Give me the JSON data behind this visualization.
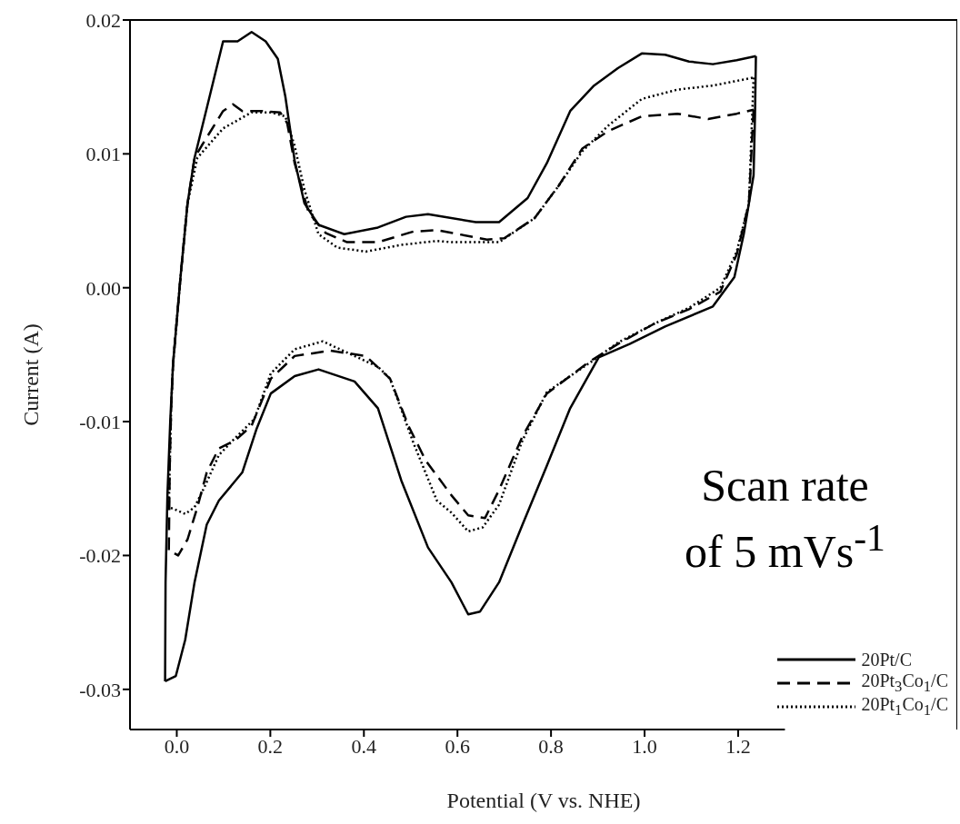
{
  "chart_data": {
    "type": "line",
    "xlabel": "Potential (V vs. NHE)",
    "ylabel": "Current (A)",
    "xlim": [
      -0.1,
      1.3
    ],
    "ylim": [
      -0.033,
      0.02
    ],
    "xticks": [
      {
        "value": 0,
        "label": "0.0"
      },
      {
        "value": 0.2,
        "label": "0.2"
      },
      {
        "value": 0.4,
        "label": "0.4"
      },
      {
        "value": 0.6,
        "label": "0.6"
      },
      {
        "value": 0.8,
        "label": "0.8"
      },
      {
        "value": 1,
        "label": "1.0"
      },
      {
        "value": 1.2,
        "label": "1.2"
      }
    ],
    "yticks": [
      {
        "value": -0.03,
        "label": "-0.03"
      },
      {
        "value": -0.02,
        "label": "-0.02"
      },
      {
        "value": -0.01,
        "label": "-0.01"
      },
      {
        "value": 0,
        "label": "0.00"
      },
      {
        "value": 0.01,
        "label": "0.01"
      },
      {
        "value": 0.02,
        "label": "0.02"
      }
    ],
    "legend": "bottom right",
    "marker": "none",
    "annotations": [
      "Scan rate of 5 mVs$^{-1}$"
    ],
    "series": [
      {
        "name": "20Pt/C",
        "color": "#000000",
        "line_style": "solid",
        "x": [
          -0.025,
          -0.024,
          -0.02,
          -0.014,
          -0.008,
          0.008,
          0.023,
          0.038,
          0.064,
          0.099,
          0.13,
          0.16,
          0.19,
          0.216,
          0.232,
          0.252,
          0.273,
          0.303,
          0.358,
          0.43,
          0.49,
          0.537,
          0.639,
          0.689,
          0.75,
          0.791,
          0.841,
          0.892,
          0.943,
          0.994,
          1.044,
          1.095,
          1.146,
          1.197,
          1.238
        ],
        "values": [
          -0.0294,
          -0.022,
          -0.0155,
          -0.01,
          -0.0057,
          0.0008,
          0.0063,
          0.0097,
          0.0134,
          0.0184,
          0.0184,
          0.0191,
          0.0184,
          0.0171,
          0.0143,
          0.0095,
          0.0063,
          0.0047,
          0.004,
          0.0045,
          0.0053,
          0.0055,
          0.0049,
          0.0049,
          0.0067,
          0.0093,
          0.0132,
          0.0151,
          0.0164,
          0.0175,
          0.0174,
          0.0169,
          0.0167,
          0.017,
          0.0173
        ]
      },
      {
        "name": "20Pt$_{3}$Co$_{1}$/C",
        "color": "#000000",
        "line_style": "dashed",
        "x": [
          -0.017,
          -0.015,
          -0.012,
          -0.008,
          0.008,
          0.023,
          0.038,
          0.053,
          0.099,
          0.12,
          0.14,
          0.181,
          0.221,
          0.236,
          0.252,
          0.282,
          0.318,
          0.364,
          0.43,
          0.506,
          0.556,
          0.587,
          0.663,
          0.7,
          0.765,
          0.816,
          0.867,
          0.922,
          0.994,
          1.07,
          1.136,
          1.197,
          1.233
        ],
        "values": [
          -0.0196,
          -0.0133,
          -0.009,
          -0.0057,
          0.0008,
          0.0063,
          0.0097,
          0.0106,
          0.0132,
          0.0137,
          0.0132,
          0.0132,
          0.0131,
          0.0123,
          0.0093,
          0.0056,
          0.0041,
          0.0034,
          0.0034,
          0.0042,
          0.0043,
          0.0041,
          0.0036,
          0.0037,
          0.0052,
          0.0076,
          0.0104,
          0.0117,
          0.0128,
          0.013,
          0.0126,
          0.013,
          0.0133
        ]
      },
      {
        "name": "20Pt$_{1}$Co$_{1}$/C",
        "color": "#000000",
        "line_style": "dotted",
        "x": [
          -0.017,
          -0.015,
          -0.012,
          -0.008,
          0.008,
          0.023,
          0.044,
          0.099,
          0.16,
          0.201,
          0.232,
          0.252,
          0.273,
          0.303,
          0.343,
          0.404,
          0.48,
          0.556,
          0.587,
          0.689,
          0.765,
          0.816,
          0.867,
          0.922,
          0.994,
          1.07,
          1.146,
          1.233
        ],
        "values": [
          -0.0164,
          -0.0133,
          -0.009,
          -0.0057,
          0.0008,
          0.0063,
          0.0097,
          0.0119,
          0.0131,
          0.0131,
          0.0128,
          0.0106,
          0.0073,
          0.004,
          0.003,
          0.0027,
          0.0032,
          0.0035,
          0.0034,
          0.0034,
          0.0052,
          0.0076,
          0.0102,
          0.0121,
          0.0141,
          0.0148,
          0.0151,
          0.0157
        ]
      },
      {
        "color": "#000000",
        "line_style": "solid",
        "x": [
          1.238,
          1.236,
          1.233,
          1.212,
          1.192,
          1.146,
          1.044,
          0.968,
          0.902,
          0.841,
          0.791,
          0.739,
          0.689,
          0.648,
          0.623,
          0.587,
          0.537,
          0.48,
          0.43,
          0.38,
          0.303,
          0.252,
          0.201,
          0.171,
          0.14,
          0.09,
          0.064,
          0.038,
          0.018,
          -0.002,
          -0.025
        ],
        "values": [
          0.0173,
          0.0128,
          0.0084,
          0.004,
          0.0008,
          -0.0014,
          -0.0029,
          -0.0042,
          -0.0052,
          -0.009,
          -0.0133,
          -0.0177,
          -0.022,
          -0.0242,
          -0.0244,
          -0.022,
          -0.0194,
          -0.0144,
          -0.009,
          -0.007,
          -0.0061,
          -0.0066,
          -0.0079,
          -0.0105,
          -0.0138,
          -0.0159,
          -0.0177,
          -0.022,
          -0.0263,
          -0.029,
          -0.0294
        ]
      },
      {
        "color": "#000000",
        "line_style": "dashed",
        "x": [
          1.233,
          1.223,
          1.197,
          1.162,
          1.095,
          1.02,
          0.943,
          0.883,
          0.791,
          0.739,
          0.689,
          0.659,
          0.623,
          0.587,
          0.532,
          0.495,
          0.456,
          0.404,
          0.328,
          0.252,
          0.201,
          0.16,
          0.125,
          0.09,
          0.064,
          0.044,
          0.023,
          0.003,
          -0.017
        ],
        "values": [
          0.0133,
          0.0063,
          0.0025,
          -0.0003,
          -0.0016,
          -0.0027,
          -0.0042,
          -0.0055,
          -0.0079,
          -0.0111,
          -0.0151,
          -0.0172,
          -0.017,
          -0.0155,
          -0.0129,
          -0.0103,
          -0.0068,
          -0.0051,
          -0.0047,
          -0.0051,
          -0.0068,
          -0.0103,
          -0.0114,
          -0.012,
          -0.0138,
          -0.0164,
          -0.0188,
          -0.02,
          -0.0196
        ]
      },
      {
        "color": "#000000",
        "line_style": "dotted",
        "x": [
          1.233,
          1.223,
          1.197,
          1.162,
          1.095,
          1.02,
          0.943,
          0.883,
          0.791,
          0.739,
          0.689,
          0.654,
          0.623,
          0.587,
          0.556,
          0.506,
          0.456,
          0.43,
          0.38,
          0.312,
          0.252,
          0.201,
          0.166,
          0.12,
          0.09,
          0.059,
          0.038,
          0.018,
          -0.008,
          -0.017
        ],
        "values": [
          0.0157,
          0.0063,
          0.0027,
          0,
          -0.0015,
          -0.0027,
          -0.0041,
          -0.0056,
          -0.0078,
          -0.0114,
          -0.0162,
          -0.0179,
          -0.0182,
          -0.0168,
          -0.0159,
          -0.0116,
          -0.0068,
          -0.0059,
          -0.0051,
          -0.004,
          -0.0046,
          -0.0064,
          -0.0098,
          -0.0114,
          -0.0125,
          -0.0149,
          -0.0164,
          -0.0169,
          -0.0165,
          -0.0164
        ]
      }
    ]
  }
}
